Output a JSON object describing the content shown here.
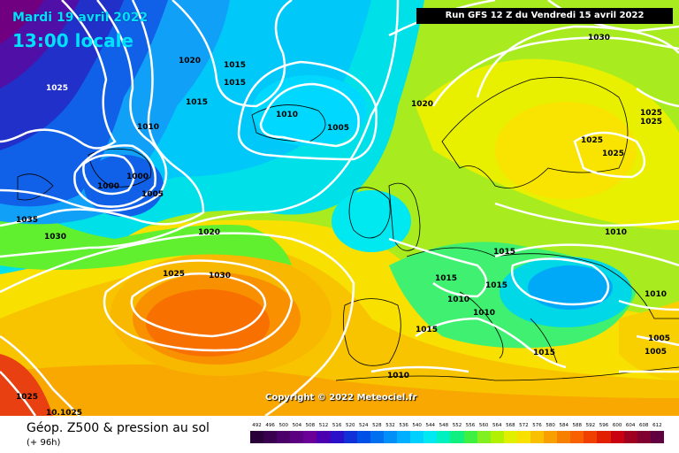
{
  "header": {
    "date": "Mardi 19 avril 2022",
    "time": "13:00 locale",
    "run": "Run GFS 12 Z du Vendredi 15 avril 2022"
  },
  "copyright": "Copyright © 2022 Meteociel.fr",
  "footer": {
    "title": "Géop. Z500 & pression au sol",
    "subtitle": "(+ 96h)"
  },
  "scale": {
    "labels": [
      "492",
      "496",
      "500",
      "504",
      "508",
      "512",
      "516",
      "520",
      "524",
      "528",
      "532",
      "536",
      "540",
      "544",
      "548",
      "552",
      "556",
      "560",
      "564",
      "568",
      "572",
      "576",
      "580",
      "584",
      "588",
      "592",
      "596",
      "600",
      "604",
      "608",
      "612"
    ],
    "colors": [
      "#2a0038",
      "#3a0050",
      "#4a0068",
      "#5a0080",
      "#6a0098",
      "#4a00b0",
      "#2a10c8",
      "#1030d8",
      "#0050e8",
      "#0070f0",
      "#0090f8",
      "#00b0ff",
      "#00d0ff",
      "#00e8f0",
      "#00f0c0",
      "#10f080",
      "#40f040",
      "#80f020",
      "#b0f000",
      "#e0f000",
      "#f8e000",
      "#f8c000",
      "#f8a000",
      "#f88000",
      "#f86000",
      "#f04000",
      "#e02000",
      "#c80010",
      "#a00020",
      "#800030",
      "#600040"
    ]
  },
  "isobar_labels": [
    {
      "text": "1020",
      "id": "l1"
    },
    {
      "text": "1015",
      "id": "l2"
    },
    {
      "text": "1015",
      "id": "l3"
    },
    {
      "text": "1015",
      "id": "l4"
    },
    {
      "text": "1010",
      "id": "l5"
    },
    {
      "text": "1005",
      "id": "l6"
    },
    {
      "text": "1025",
      "id": "l7"
    },
    {
      "text": "1010",
      "id": "l8"
    },
    {
      "text": "1000",
      "id": "l9"
    },
    {
      "text": "1000",
      "id": "l10"
    },
    {
      "text": "1005",
      "id": "l11"
    },
    {
      "text": "1035",
      "id": "l12"
    },
    {
      "text": "1030",
      "id": "l13"
    },
    {
      "text": "1020",
      "id": "l14"
    },
    {
      "text": "1025",
      "id": "l15"
    },
    {
      "text": "1030",
      "id": "l16"
    },
    {
      "text": "1020",
      "id": "l17"
    },
    {
      "text": "1030",
      "id": "l18"
    },
    {
      "text": "1025",
      "id": "l19"
    },
    {
      "text": "1025",
      "id": "l20"
    },
    {
      "text": "1025",
      "id": "l21"
    },
    {
      "text": "1025",
      "id": "l22"
    },
    {
      "text": "1010",
      "id": "l23"
    },
    {
      "text": "1015",
      "id": "l24"
    },
    {
      "text": "1015",
      "id": "l25"
    },
    {
      "text": "1015",
      "id": "l26"
    },
    {
      "text": "1010",
      "id": "l27"
    },
    {
      "text": "1010",
      "id": "l28"
    },
    {
      "text": "1015",
      "id": "l29"
    },
    {
      "text": "1015",
      "id": "l30"
    },
    {
      "text": "1010",
      "id": "l31"
    },
    {
      "text": "1010",
      "id": "l32"
    },
    {
      "text": "1005",
      "id": "l33"
    },
    {
      "text": "1005",
      "id": "l34"
    },
    {
      "text": "1025",
      "id": "l35"
    },
    {
      "text": "10.1025",
      "id": "l36"
    }
  ]
}
